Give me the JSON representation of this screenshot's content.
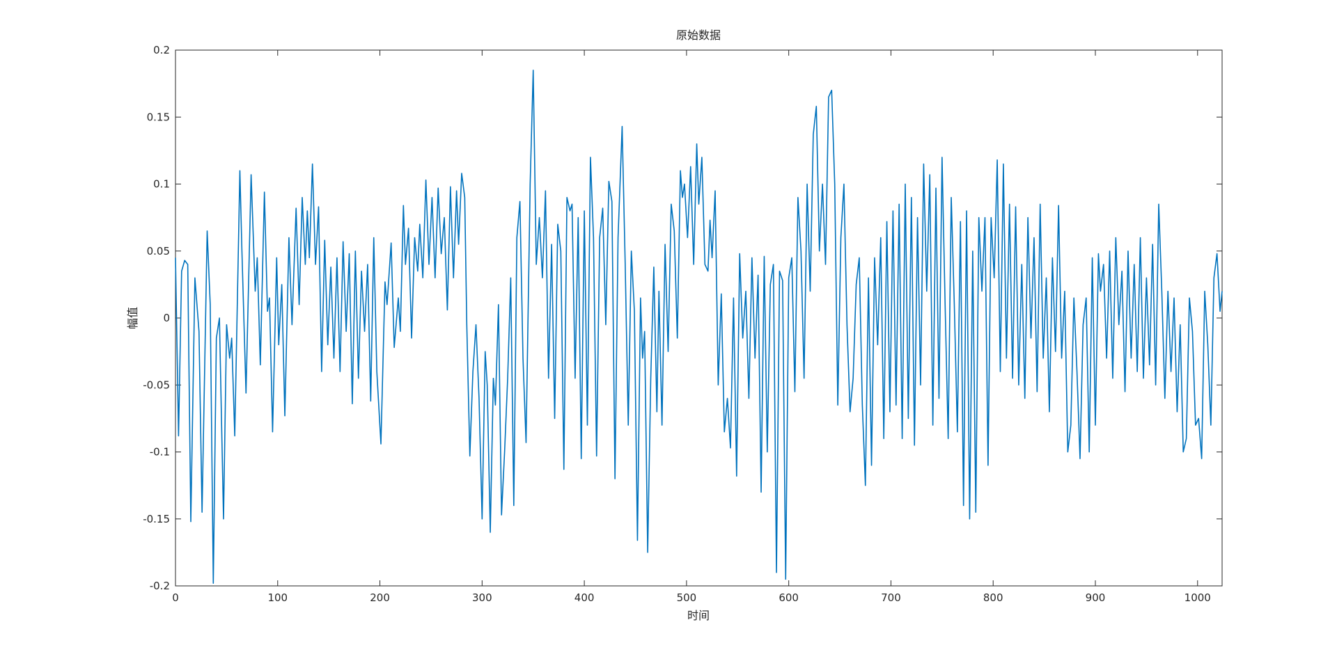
{
  "chart_data": {
    "type": "line",
    "title": "原始数据",
    "x_label": "时间",
    "y_label": "幅值",
    "xlim": [
      0,
      1024
    ],
    "ylim": [
      -0.2,
      0.2
    ],
    "xticks": [
      0,
      100,
      200,
      300,
      400,
      500,
      600,
      700,
      800,
      900,
      1000
    ],
    "yticks": [
      -0.2,
      -0.15,
      -0.1,
      -0.05,
      0,
      0.05,
      0.1,
      0.15,
      0.2
    ],
    "x": [
      0,
      3,
      6,
      9,
      12,
      15,
      19,
      23,
      26,
      31,
      34,
      37,
      40,
      43,
      47,
      50,
      53,
      55,
      58,
      63,
      65,
      69,
      74,
      78,
      80,
      83,
      87,
      90,
      92,
      95,
      99,
      101,
      104,
      107,
      111,
      114,
      118,
      121,
      124,
      127,
      129,
      131,
      134,
      137,
      140,
      143,
      146,
      149,
      152,
      155,
      158,
      161,
      164,
      167,
      170,
      173,
      176,
      179,
      182,
      185,
      188,
      191,
      194,
      197,
      201,
      205,
      207,
      211,
      214,
      218,
      220,
      223,
      225,
      228,
      231,
      234,
      237,
      239,
      242,
      245,
      248,
      251,
      254,
      257,
      260,
      263,
      266,
      269,
      272,
      275,
      277,
      280,
      283,
      285,
      288,
      291,
      294,
      297,
      300,
      303,
      305,
      308,
      311,
      313,
      316,
      319,
      322,
      325,
      328,
      331,
      334,
      337,
      340,
      343,
      347,
      350,
      353,
      356,
      359,
      362,
      365,
      368,
      371,
      374,
      377,
      380,
      383,
      386,
      388,
      391,
      394,
      397,
      400,
      403,
      406,
      409,
      412,
      415,
      418,
      421,
      424,
      427,
      430,
      433,
      437,
      440,
      443,
      446,
      449,
      452,
      455,
      457,
      459,
      462,
      465,
      468,
      471,
      473,
      476,
      479,
      482,
      485,
      488,
      491,
      494,
      496,
      498,
      501,
      504,
      507,
      510,
      512,
      515,
      518,
      521,
      523,
      525,
      528,
      531,
      534,
      537,
      540,
      543,
      546,
      549,
      552,
      555,
      558,
      561,
      564,
      567,
      570,
      573,
      576,
      579,
      582,
      585,
      588,
      591,
      594,
      597,
      600,
      603,
      606,
      609,
      612,
      615,
      618,
      621,
      624,
      627,
      630,
      633,
      636,
      639,
      642,
      645,
      648,
      651,
      654,
      657,
      660,
      663,
      666,
      669,
      672,
      675,
      678,
      681,
      684,
      687,
      690,
      693,
      696,
      699,
      702,
      705,
      708,
      711,
      714,
      717,
      720,
      723,
      726,
      729,
      732,
      735,
      738,
      741,
      744,
      747,
      750,
      753,
      756,
      759,
      762,
      765,
      768,
      771,
      774,
      777,
      780,
      783,
      786,
      789,
      792,
      795,
      798,
      801,
      804,
      807,
      810,
      813,
      816,
      819,
      822,
      825,
      828,
      831,
      834,
      837,
      840,
      843,
      846,
      849,
      852,
      855,
      858,
      861,
      864,
      867,
      870,
      873,
      876,
      879,
      882,
      885,
      888,
      891,
      894,
      897,
      900,
      903,
      905,
      908,
      911,
      914,
      917,
      920,
      923,
      926,
      929,
      932,
      935,
      938,
      941,
      944,
      947,
      950,
      953,
      956,
      959,
      962,
      965,
      968,
      971,
      974,
      977,
      980,
      983,
      986,
      989,
      992,
      995,
      998,
      1001,
      1004,
      1007,
      1010,
      1013,
      1016,
      1019,
      1022,
      1024
    ],
    "series": [
      {
        "color": "#0072bd",
        "values": [
          0.045,
          -0.088,
          0.035,
          0.043,
          0.04,
          -0.152,
          0.03,
          -0.01,
          -0.145,
          0.065,
          0.01,
          -0.198,
          -0.015,
          0.0,
          -0.15,
          -0.005,
          -0.03,
          -0.015,
          -0.088,
          0.11,
          0.05,
          -0.056,
          0.107,
          0.02,
          0.045,
          -0.035,
          0.094,
          0.005,
          0.015,
          -0.085,
          0.045,
          -0.02,
          0.025,
          -0.073,
          0.06,
          -0.005,
          0.082,
          0.01,
          0.09,
          0.04,
          0.08,
          0.045,
          0.115,
          0.04,
          0.083,
          -0.04,
          0.058,
          -0.02,
          0.038,
          -0.03,
          0.045,
          -0.04,
          0.057,
          -0.01,
          0.048,
          -0.064,
          0.05,
          -0.045,
          0.035,
          -0.01,
          0.04,
          -0.062,
          0.06,
          -0.04,
          -0.094,
          0.027,
          0.01,
          0.056,
          -0.022,
          0.015,
          -0.01,
          0.084,
          0.04,
          0.067,
          -0.015,
          0.06,
          0.035,
          0.07,
          0.03,
          0.103,
          0.04,
          0.09,
          0.03,
          0.097,
          0.048,
          0.075,
          0.006,
          0.098,
          0.03,
          0.095,
          0.055,
          0.108,
          0.09,
          -0.005,
          -0.103,
          -0.04,
          -0.005,
          -0.06,
          -0.15,
          -0.025,
          -0.05,
          -0.16,
          -0.045,
          -0.065,
          0.01,
          -0.147,
          -0.1,
          -0.045,
          0.03,
          -0.14,
          0.06,
          0.087,
          -0.03,
          -0.093,
          0.1,
          0.185,
          0.04,
          0.075,
          0.03,
          0.095,
          -0.045,
          0.055,
          -0.075,
          0.07,
          0.05,
          -0.113,
          0.09,
          0.08,
          0.085,
          -0.045,
          0.075,
          -0.105,
          0.08,
          -0.08,
          0.12,
          0.06,
          -0.103,
          0.06,
          0.082,
          -0.005,
          0.102,
          0.087,
          -0.12,
          0.06,
          0.143,
          0.04,
          -0.08,
          0.05,
          0.005,
          -0.166,
          0.015,
          -0.03,
          -0.01,
          -0.175,
          -0.045,
          0.038,
          -0.07,
          0.02,
          -0.08,
          0.055,
          -0.025,
          0.085,
          0.065,
          -0.015,
          0.11,
          0.09,
          0.1,
          0.06,
          0.113,
          0.04,
          0.13,
          0.085,
          0.12,
          0.04,
          0.035,
          0.073,
          0.045,
          0.095,
          -0.05,
          0.018,
          -0.085,
          -0.06,
          -0.097,
          0.015,
          -0.118,
          0.048,
          -0.015,
          0.02,
          -0.06,
          0.045,
          -0.03,
          0.032,
          -0.13,
          0.046,
          -0.1,
          0.025,
          0.04,
          -0.19,
          0.035,
          0.028,
          -0.195,
          0.03,
          0.045,
          -0.055,
          0.09,
          0.05,
          -0.045,
          0.1,
          0.02,
          0.137,
          0.158,
          0.05,
          0.1,
          0.04,
          0.165,
          0.17,
          0.1,
          -0.065,
          0.06,
          0.1,
          -0.005,
          -0.07,
          -0.045,
          0.025,
          0.045,
          -0.065,
          -0.125,
          0.03,
          -0.11,
          0.045,
          -0.02,
          0.06,
          -0.09,
          0.072,
          -0.07,
          0.08,
          -0.065,
          0.085,
          -0.09,
          0.1,
          -0.075,
          0.09,
          -0.095,
          0.075,
          -0.05,
          0.115,
          0.02,
          0.107,
          -0.08,
          0.097,
          -0.06,
          0.12,
          0.01,
          -0.09,
          0.09,
          0.01,
          -0.085,
          0.072,
          -0.14,
          0.08,
          -0.15,
          0.05,
          -0.145,
          0.075,
          0.02,
          0.075,
          -0.11,
          0.075,
          0.03,
          0.118,
          -0.04,
          0.115,
          -0.03,
          0.085,
          -0.045,
          0.083,
          -0.05,
          0.04,
          -0.06,
          0.075,
          -0.015,
          0.06,
          -0.055,
          0.085,
          -0.03,
          0.03,
          -0.07,
          0.045,
          -0.025,
          0.084,
          -0.03,
          0.02,
          -0.1,
          -0.08,
          0.015,
          -0.04,
          -0.105,
          -0.005,
          0.015,
          -0.1,
          0.045,
          -0.08,
          0.048,
          0.02,
          0.04,
          -0.03,
          0.05,
          -0.045,
          0.06,
          -0.005,
          0.035,
          -0.055,
          0.05,
          -0.03,
          0.04,
          -0.04,
          0.06,
          -0.045,
          0.03,
          -0.035,
          0.055,
          -0.05,
          0.085,
          0.02,
          -0.06,
          0.02,
          -0.04,
          0.015,
          -0.07,
          -0.005,
          -0.1,
          -0.09,
          0.015,
          -0.01,
          -0.08,
          -0.075,
          -0.105,
          0.02,
          -0.02,
          -0.08,
          0.03,
          0.048,
          0.005,
          0.02
        ]
      }
    ]
  }
}
